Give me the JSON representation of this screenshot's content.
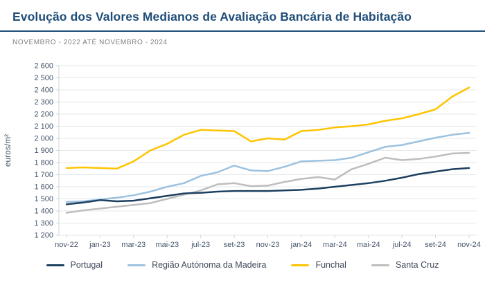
{
  "header": {
    "title": "Evolução dos Valores Medianos de Avaliação Bancária de Habitação",
    "subtitle": "NOVEMBRO - 2022 ATÉ NOVEMBRO - 2024"
  },
  "colors": {
    "title": "#1f4e79",
    "title_rule": "#1f4e79",
    "subtitle": "#7f7f7f",
    "axis_text": "#44546a",
    "gridline": "#e5e7e9",
    "axis_line": "#cfd4d9",
    "legend_text": "#40495a"
  },
  "chart_data": {
    "type": "line",
    "title": "Evolução dos Valores Medianos de Avaliação Bancária de Habitação",
    "subtitle": "NOVEMBRO - 2022 ATÉ NOVEMBRO - 2024",
    "xlabel": "",
    "ylabel": "euros/m²",
    "ylim": [
      1200,
      2600
    ],
    "ytick_step": 100,
    "grid": "horizontal",
    "legend_position": "bottom",
    "x": [
      "nov-22",
      "dez-22",
      "jan-23",
      "fev-23",
      "mar-23",
      "abr-23",
      "mai-23",
      "jun-23",
      "jul-23",
      "ago-23",
      "set-23",
      "out-23",
      "nov-23",
      "dez-23",
      "jan-24",
      "fev-24",
      "mar-24",
      "abr-24",
      "mai-24",
      "jun-24",
      "jul-24",
      "ago-24",
      "set-24",
      "out-24",
      "nov-24"
    ],
    "x_tick_labels": [
      "nov-22",
      "jan-23",
      "mar-23",
      "mai-23",
      "jul-23",
      "set-23",
      "nov-23",
      "jan-24",
      "mar-24",
      "mai-24",
      "jul-24",
      "set-24",
      "nov-24"
    ],
    "series": [
      {
        "name": "Portugal",
        "color": "#1c3f60",
        "values": [
          1455,
          1470,
          1490,
          1480,
          1485,
          1505,
          1525,
          1545,
          1550,
          1560,
          1565,
          1565,
          1565,
          1570,
          1575,
          1585,
          1600,
          1615,
          1630,
          1650,
          1675,
          1705,
          1725,
          1745,
          1755
        ]
      },
      {
        "name": "Região Autónoma da Madeira",
        "color": "#9cc2e0",
        "values": [
          1475,
          1480,
          1495,
          1510,
          1530,
          1560,
          1600,
          1630,
          1690,
          1720,
          1775,
          1735,
          1730,
          1765,
          1810,
          1815,
          1820,
          1840,
          1885,
          1930,
          1945,
          1975,
          2005,
          2030,
          2045
        ]
      },
      {
        "name": "Funchal",
        "color": "#ffc400",
        "values": [
          1755,
          1760,
          1755,
          1750,
          1810,
          1900,
          1955,
          2030,
          2070,
          2065,
          2060,
          1975,
          2000,
          1990,
          2060,
          2070,
          2090,
          2100,
          2115,
          2145,
          2165,
          2200,
          2240,
          2345,
          2420
        ]
      },
      {
        "name": "Santa Cruz",
        "color": "#bdbdbd",
        "values": [
          1385,
          1405,
          1420,
          1435,
          1450,
          1465,
          1500,
          1535,
          1570,
          1620,
          1630,
          1605,
          1610,
          1640,
          1665,
          1680,
          1660,
          1745,
          1790,
          1840,
          1820,
          1830,
          1850,
          1875,
          1880
        ]
      }
    ]
  }
}
